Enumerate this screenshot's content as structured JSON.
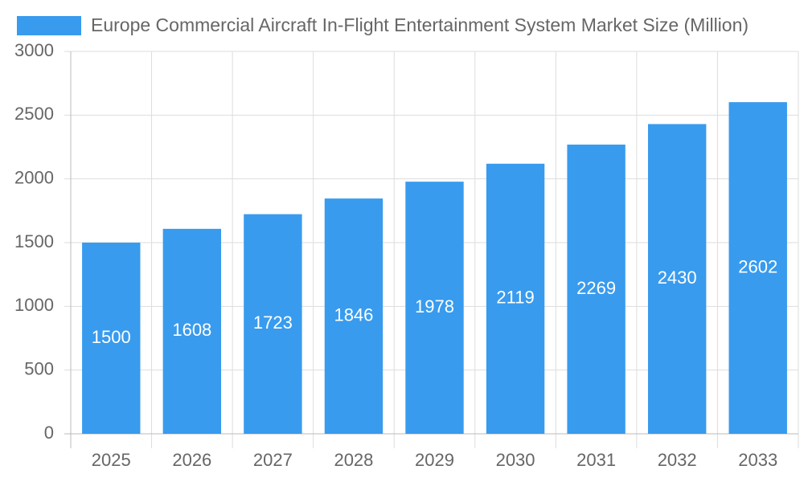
{
  "chart_data": {
    "type": "bar",
    "categories": [
      "2025",
      "2026",
      "2027",
      "2028",
      "2029",
      "2030",
      "2031",
      "2032",
      "2033"
    ],
    "series": [
      {
        "name": "Europe Commercial Aircraft In-Flight Entertainment System Market Size (Million)",
        "color": "#389bee",
        "values": [
          1500,
          1608,
          1723,
          1846,
          1978,
          2119,
          2269,
          2430,
          2602
        ]
      }
    ],
    "ylim": [
      0,
      3000
    ],
    "yticks": [
      0,
      500,
      1000,
      1500,
      2000,
      2500,
      3000
    ],
    "grid": true,
    "legend": "top"
  }
}
